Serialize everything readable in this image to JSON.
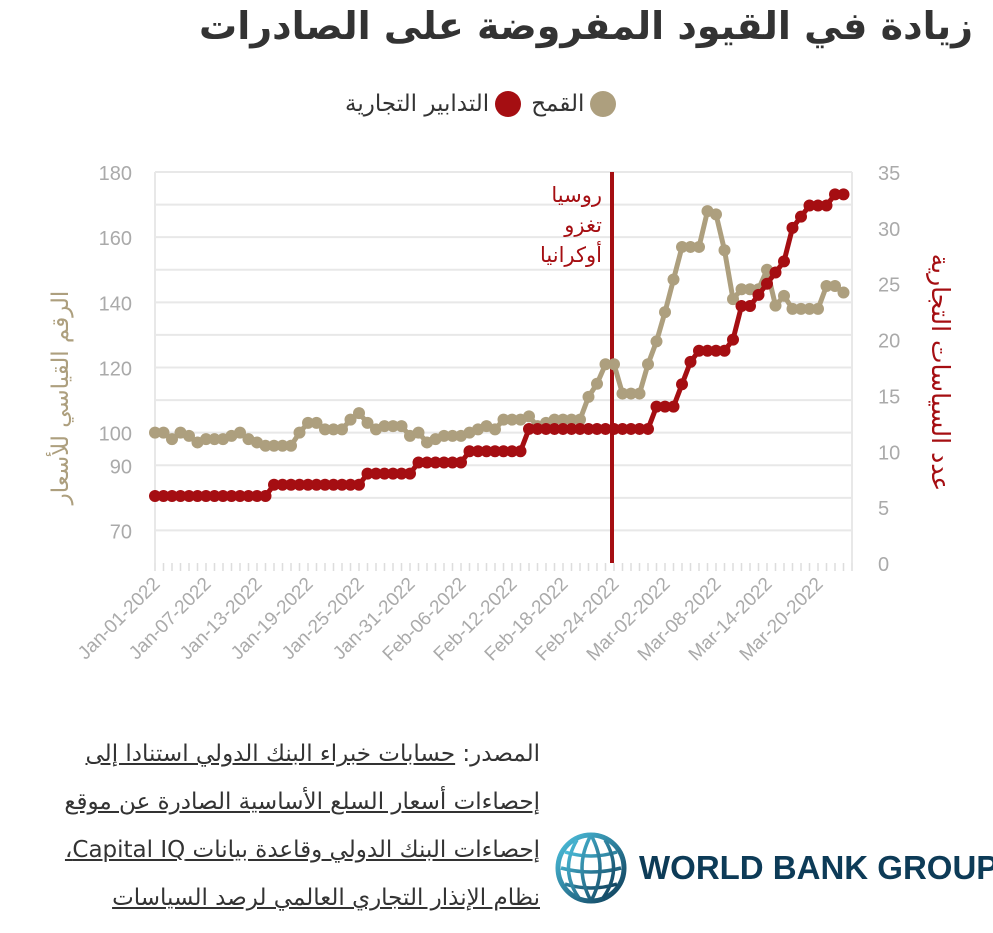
{
  "title": "زيادة في القيود المفروضة على الصادرات",
  "legend": {
    "wheat": "القمح",
    "trade_measures": "التدابير التجارية"
  },
  "source": {
    "label": "المصدر:",
    "text": "حسابات خبراء البنك الدولي استنادا إلى إحصاءات أسعار السلع الأساسية الصادرة عن موقع إحصاءات البنك الدولي وقاعدة بيانات Capital IQ، نظام الإنذار التجاري العالمي لرصد السياسات"
  },
  "logo": {
    "text": "WORLD BANK GROUP",
    "icon": "globe-icon"
  },
  "colors": {
    "wheat": "#ad9f7e",
    "trade": "#a50e12",
    "event": "#a50e12",
    "grid": "#e8e8e8",
    "axis_text": "#aaaaaa"
  },
  "chart_data": {
    "type": "line",
    "x_tick_labels": [
      "Jan-01-2022",
      "Jan-07-2022",
      "Jan-13-2022",
      "Jan-19-2022",
      "Jan-25-2022",
      "Jan-31-2022",
      "Feb-06-2022",
      "Feb-12-2022",
      "Feb-18-2022",
      "Feb-24-2022",
      "Mar-02-2022",
      "Mar-08-2022",
      "Mar-14-2022",
      "Mar-20-2022"
    ],
    "x_start": "2022-01-01",
    "x_end": "2022-03-24",
    "y_left": {
      "label": "الرقم القياسي للأسعار",
      "ticks": [
        70,
        90,
        100,
        120,
        140,
        160,
        180
      ],
      "range": [
        60,
        180
      ]
    },
    "y_right": {
      "label": "عدد السياسات التجارية",
      "ticks": [
        0,
        5,
        10,
        15,
        20,
        25,
        30,
        35
      ],
      "range": [
        0,
        35
      ]
    },
    "annotation": {
      "date": "2022-02-24",
      "text": [
        "روسيا",
        "تغزو",
        "أوكرانيا"
      ]
    },
    "series": [
      {
        "name": "القمح",
        "axis": "left",
        "values": [
          [
            "2022-01-01",
            100
          ],
          [
            "2022-01-02",
            100
          ],
          [
            "2022-01-03",
            98
          ],
          [
            "2022-01-04",
            100
          ],
          [
            "2022-01-05",
            99
          ],
          [
            "2022-01-06",
            97
          ],
          [
            "2022-01-07",
            98
          ],
          [
            "2022-01-08",
            98
          ],
          [
            "2022-01-09",
            98
          ],
          [
            "2022-01-10",
            99
          ],
          [
            "2022-01-11",
            100
          ],
          [
            "2022-01-12",
            98
          ],
          [
            "2022-01-13",
            97
          ],
          [
            "2022-01-14",
            96
          ],
          [
            "2022-01-15",
            96
          ],
          [
            "2022-01-16",
            96
          ],
          [
            "2022-01-17",
            96
          ],
          [
            "2022-01-18",
            100
          ],
          [
            "2022-01-19",
            103
          ],
          [
            "2022-01-20",
            103
          ],
          [
            "2022-01-21",
            101
          ],
          [
            "2022-01-22",
            101
          ],
          [
            "2022-01-23",
            101
          ],
          [
            "2022-01-24",
            104
          ],
          [
            "2022-01-25",
            106
          ],
          [
            "2022-01-26",
            103
          ],
          [
            "2022-01-27",
            101
          ],
          [
            "2022-01-28",
            102
          ],
          [
            "2022-01-29",
            102
          ],
          [
            "2022-01-30",
            102
          ],
          [
            "2022-01-31",
            99
          ],
          [
            "2022-02-01",
            100
          ],
          [
            "2022-02-02",
            97
          ],
          [
            "2022-02-03",
            98
          ],
          [
            "2022-02-04",
            99
          ],
          [
            "2022-02-05",
            99
          ],
          [
            "2022-02-06",
            99
          ],
          [
            "2022-02-07",
            100
          ],
          [
            "2022-02-08",
            101
          ],
          [
            "2022-02-09",
            102
          ],
          [
            "2022-02-10",
            101
          ],
          [
            "2022-02-11",
            104
          ],
          [
            "2022-02-12",
            104
          ],
          [
            "2022-02-13",
            104
          ],
          [
            "2022-02-14",
            105
          ],
          [
            "2022-02-15",
            102
          ],
          [
            "2022-02-16",
            103
          ],
          [
            "2022-02-17",
            104
          ],
          [
            "2022-02-18",
            104
          ],
          [
            "2022-02-19",
            104
          ],
          [
            "2022-02-20",
            104
          ],
          [
            "2022-02-21",
            111
          ],
          [
            "2022-02-22",
            115
          ],
          [
            "2022-02-23",
            121
          ],
          [
            "2022-02-24",
            121
          ],
          [
            "2022-02-25",
            112
          ],
          [
            "2022-02-26",
            112
          ],
          [
            "2022-02-27",
            112
          ],
          [
            "2022-02-28",
            121
          ],
          [
            "2022-03-01",
            128
          ],
          [
            "2022-03-02",
            137
          ],
          [
            "2022-03-03",
            147
          ],
          [
            "2022-03-04",
            157
          ],
          [
            "2022-03-05",
            157
          ],
          [
            "2022-03-06",
            157
          ],
          [
            "2022-03-07",
            168
          ],
          [
            "2022-03-08",
            167
          ],
          [
            "2022-03-09",
            156
          ],
          [
            "2022-03-10",
            141
          ],
          [
            "2022-03-11",
            144
          ],
          [
            "2022-03-12",
            144
          ],
          [
            "2022-03-13",
            144
          ],
          [
            "2022-03-14",
            150
          ],
          [
            "2022-03-15",
            139
          ],
          [
            "2022-03-16",
            142
          ],
          [
            "2022-03-17",
            138
          ],
          [
            "2022-03-18",
            138
          ],
          [
            "2022-03-19",
            138
          ],
          [
            "2022-03-20",
            138
          ],
          [
            "2022-03-21",
            145
          ],
          [
            "2022-03-22",
            145
          ],
          [
            "2022-03-23",
            143
          ]
        ]
      },
      {
        "name": "التدابير التجارية",
        "axis": "right",
        "values": [
          [
            "2022-01-01",
            6
          ],
          [
            "2022-01-02",
            6
          ],
          [
            "2022-01-03",
            6
          ],
          [
            "2022-01-04",
            6
          ],
          [
            "2022-01-05",
            6
          ],
          [
            "2022-01-06",
            6
          ],
          [
            "2022-01-07",
            6
          ],
          [
            "2022-01-08",
            6
          ],
          [
            "2022-01-09",
            6
          ],
          [
            "2022-01-10",
            6
          ],
          [
            "2022-01-11",
            6
          ],
          [
            "2022-01-12",
            6
          ],
          [
            "2022-01-13",
            6
          ],
          [
            "2022-01-14",
            6
          ],
          [
            "2022-01-15",
            7
          ],
          [
            "2022-01-16",
            7
          ],
          [
            "2022-01-17",
            7
          ],
          [
            "2022-01-18",
            7
          ],
          [
            "2022-01-19",
            7
          ],
          [
            "2022-01-20",
            7
          ],
          [
            "2022-01-21",
            7
          ],
          [
            "2022-01-22",
            7
          ],
          [
            "2022-01-23",
            7
          ],
          [
            "2022-01-24",
            7
          ],
          [
            "2022-01-25",
            7
          ],
          [
            "2022-01-26",
            8
          ],
          [
            "2022-01-27",
            8
          ],
          [
            "2022-01-28",
            8
          ],
          [
            "2022-01-29",
            8
          ],
          [
            "2022-01-30",
            8
          ],
          [
            "2022-01-31",
            8
          ],
          [
            "2022-02-01",
            9
          ],
          [
            "2022-02-02",
            9
          ],
          [
            "2022-02-03",
            9
          ],
          [
            "2022-02-04",
            9
          ],
          [
            "2022-02-05",
            9
          ],
          [
            "2022-02-06",
            9
          ],
          [
            "2022-02-07",
            10
          ],
          [
            "2022-02-08",
            10
          ],
          [
            "2022-02-09",
            10
          ],
          [
            "2022-02-10",
            10
          ],
          [
            "2022-02-11",
            10
          ],
          [
            "2022-02-12",
            10
          ],
          [
            "2022-02-13",
            10
          ],
          [
            "2022-02-14",
            12
          ],
          [
            "2022-02-15",
            12
          ],
          [
            "2022-02-16",
            12
          ],
          [
            "2022-02-17",
            12
          ],
          [
            "2022-02-18",
            12
          ],
          [
            "2022-02-19",
            12
          ],
          [
            "2022-02-20",
            12
          ],
          [
            "2022-02-21",
            12
          ],
          [
            "2022-02-22",
            12
          ],
          [
            "2022-02-23",
            12
          ],
          [
            "2022-02-24",
            12
          ],
          [
            "2022-02-25",
            12
          ],
          [
            "2022-02-26",
            12
          ],
          [
            "2022-02-27",
            12
          ],
          [
            "2022-02-28",
            12
          ],
          [
            "2022-03-01",
            14
          ],
          [
            "2022-03-02",
            14
          ],
          [
            "2022-03-03",
            14
          ],
          [
            "2022-03-04",
            16
          ],
          [
            "2022-03-05",
            18
          ],
          [
            "2022-03-06",
            19
          ],
          [
            "2022-03-07",
            19
          ],
          [
            "2022-03-08",
            19
          ],
          [
            "2022-03-09",
            19
          ],
          [
            "2022-03-10",
            20
          ],
          [
            "2022-03-11",
            23
          ],
          [
            "2022-03-12",
            23
          ],
          [
            "2022-03-13",
            24
          ],
          [
            "2022-03-14",
            25
          ],
          [
            "2022-03-15",
            26
          ],
          [
            "2022-03-16",
            27
          ],
          [
            "2022-03-17",
            30
          ],
          [
            "2022-03-18",
            31
          ],
          [
            "2022-03-19",
            32
          ],
          [
            "2022-03-20",
            32
          ],
          [
            "2022-03-21",
            32
          ],
          [
            "2022-03-22",
            33
          ],
          [
            "2022-03-23",
            33
          ]
        ]
      }
    ]
  }
}
